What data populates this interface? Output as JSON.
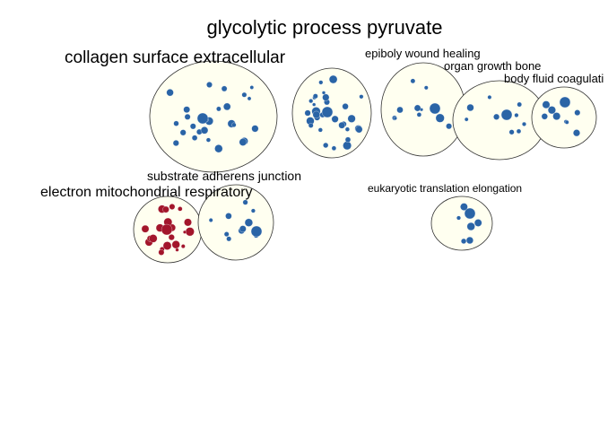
{
  "colors": {
    "background": "#ffffff",
    "cluster_fill": "#fffff0",
    "cluster_stroke": "#333333",
    "node_blue": "#2a64a6",
    "node_red": "#a3162b",
    "edge": "#8fb6de"
  },
  "clusters": [
    {
      "id": "glycolytic",
      "label": "glycolytic process pyruvate",
      "node_color": "blue"
    },
    {
      "id": "collagen",
      "label": "collagen surface extracellular",
      "node_color": "blue"
    },
    {
      "id": "epiboly",
      "label": "epiboly wound healing",
      "node_color": "blue"
    },
    {
      "id": "organ",
      "label": "organ growth bone",
      "node_color": "blue"
    },
    {
      "id": "bodyfluid",
      "label": "body fluid coagulati",
      "node_color": "blue"
    },
    {
      "id": "substrate",
      "label": "substrate adherens junction",
      "node_color": "blue"
    },
    {
      "id": "electron",
      "label": "electron mitochondrial respiratory",
      "node_color": "red"
    },
    {
      "id": "eukaryotic",
      "label": "eukaryotic translation elongation",
      "node_color": "blue"
    }
  ]
}
